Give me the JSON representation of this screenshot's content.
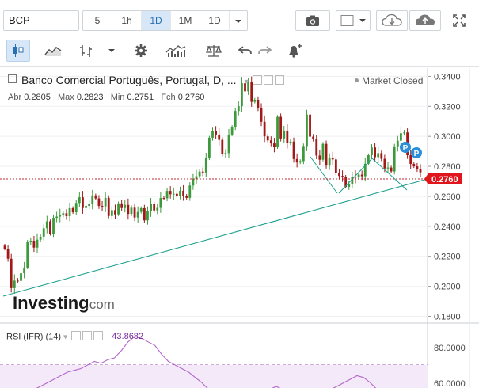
{
  "toolbar": {
    "symbol": "BCP",
    "intervals": [
      "5",
      "1h",
      "1D",
      "1M",
      "1D"
    ],
    "active_interval": "1D",
    "icons": [
      "camera-icon",
      "color-box-icon",
      "cloud-download-icon",
      "cloud-upload-icon",
      "fullscreen-icon"
    ]
  },
  "toolbar2": {
    "icons": [
      "candlestick-icon",
      "line-chart-icon",
      "bar-type-icon",
      "dropdown-arrow-icon",
      "gear-icon",
      "indicators-icon",
      "balance-icon",
      "undo-icon",
      "redo-icon",
      "alert-add-icon"
    ]
  },
  "chart_header": {
    "title": "Banco Comercial Português, Portugal, D, ...",
    "market_status": "Market Closed",
    "abr_label": "Abr",
    "abr_value": "0.2805",
    "max_label": "Max",
    "max_value": "0.2823",
    "min_label": "Min",
    "min_value": "0.2751",
    "fch_label": "Fch",
    "fch_value": "0.2760"
  },
  "rsi": {
    "label": "RSI (IFR) (14)",
    "value": "43.8682"
  },
  "watermark": {
    "brand": "Investing",
    "suffix": ".com"
  },
  "colors": {
    "up": "#3c9a3c",
    "down": "#a01818",
    "trendline": "#1fa08f",
    "rsi_line": "#b266cc",
    "price_tag": "#e0161c",
    "badge": "#2a8fd8"
  },
  "chart_data": [
    {
      "type": "candlestick",
      "ylim": [
        0.1755,
        0.3455
      ],
      "y_ticks": [
        "0.3400",
        "0.3200",
        "0.3000",
        "0.2800",
        "0.2600",
        "0.2400",
        "0.2200",
        "0.2000",
        "0.1800"
      ],
      "last_price": "0.2760",
      "closes": [
        0.2251,
        0.2184,
        0.1988,
        0.2038,
        0.2036,
        0.2087,
        0.2125,
        0.2297,
        0.2304,
        0.2258,
        0.2311,
        0.2331,
        0.2387,
        0.2433,
        0.2349,
        0.2457,
        0.2465,
        0.2475,
        0.2487,
        0.2468,
        0.2521,
        0.2494,
        0.2556,
        0.2594,
        0.2522,
        0.2536,
        0.2547,
        0.2606,
        0.2586,
        0.2536,
        0.2533,
        0.259,
        0.2469,
        0.2508,
        0.248,
        0.2553,
        0.2522,
        0.2543,
        0.2483,
        0.2524,
        0.2459,
        0.2496,
        0.2521,
        0.244,
        0.2501,
        0.2547,
        0.2506,
        0.2523,
        0.2589,
        0.2587,
        0.2636,
        0.2614,
        0.2617,
        0.2605,
        0.2637,
        0.2604,
        0.259,
        0.2672,
        0.2717,
        0.2734,
        0.2765,
        0.2759,
        0.2853,
        0.2991,
        0.3036,
        0.3012,
        0.2977,
        0.2882,
        0.2888,
        0.3012,
        0.3062,
        0.3169,
        0.3201,
        0.3354,
        0.33,
        0.3362,
        0.323,
        0.3244,
        0.3188,
        0.3097,
        0.3,
        0.2973,
        0.2953,
        0.2927,
        0.313,
        0.2986,
        0.3038,
        0.2957,
        0.2965,
        0.2849,
        0.2826,
        0.2835,
        0.293,
        0.3145,
        0.2998,
        0.2981,
        0.2872,
        0.2844,
        0.295,
        0.2805,
        0.2855,
        0.2846,
        0.2755,
        0.2736,
        0.273,
        0.2663,
        0.2681,
        0.2732,
        0.2725,
        0.2745,
        0.2734,
        0.2817,
        0.2874,
        0.2926,
        0.2861,
        0.2888,
        0.285,
        0.2786,
        0.2792,
        0.2766,
        0.2928,
        0.2971,
        0.3021,
        0.3026,
        0.2874,
        0.2816,
        0.28,
        0.2783,
        0.276
      ],
      "rsi_values": [
        44,
        46,
        48,
        52,
        55,
        58,
        60,
        62,
        64,
        66,
        68,
        69,
        70,
        72,
        74,
        73,
        75,
        76,
        80,
        85,
        88,
        87,
        85,
        83,
        78,
        74,
        72,
        70,
        68,
        65,
        62,
        58,
        55,
        50,
        45,
        43,
        47,
        50,
        53,
        56,
        58,
        60,
        55,
        52,
        50,
        48,
        46,
        48,
        52,
        56,
        60,
        62,
        64,
        66,
        65,
        62,
        58,
        55,
        52,
        50,
        47,
        45,
        44,
        44
      ]
    }
  ]
}
